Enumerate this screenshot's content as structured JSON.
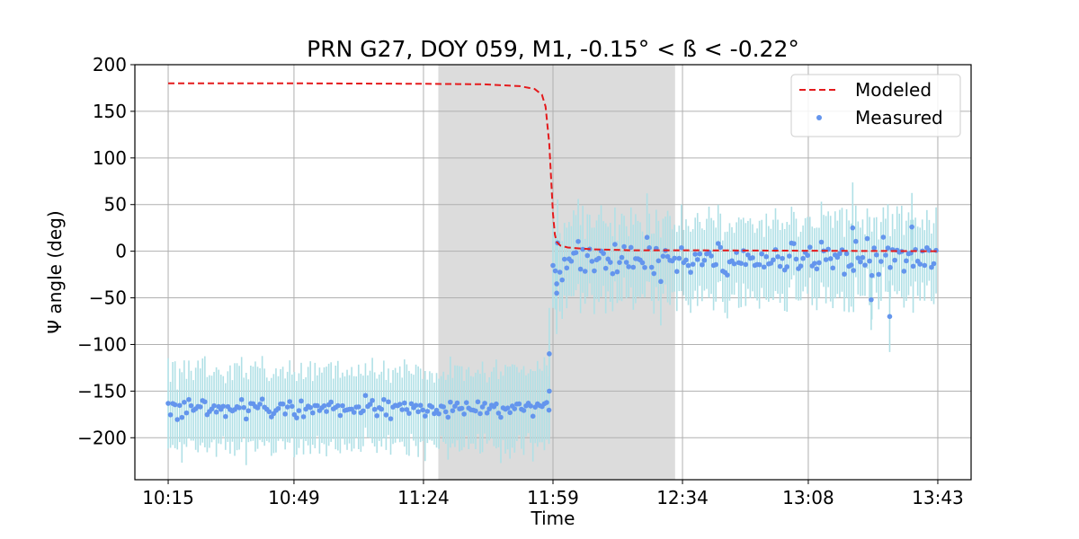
{
  "chart_data": {
    "type": "scatter",
    "title": "PRN G27, DOY 059, M1, -0.15° < ß < -0.22°",
    "xlabel": "Time",
    "ylabel": "Ψ angle (deg)",
    "x_unit": "time of day (HH:MM)",
    "xlim": [
      "10:06",
      "13:52"
    ],
    "ylim": [
      -245,
      200
    ],
    "x_ticks": [
      "10:15",
      "10:49",
      "11:24",
      "11:59",
      "12:34",
      "13:08",
      "13:43"
    ],
    "y_ticks": [
      200,
      150,
      100,
      50,
      0,
      -50,
      -100,
      -150,
      -200
    ],
    "y_tick_labels": [
      "200",
      "150",
      "100",
      "50",
      "0",
      "−50",
      "−100",
      "−150",
      "−200"
    ],
    "grid": true,
    "shaded_region": {
      "x_start": "11:28",
      "x_end": "12:32",
      "color": "#dcdcdc"
    },
    "legend": {
      "position": "top-right",
      "entries": [
        {
          "label": "Modeled",
          "style": "dashed-line",
          "color": "#e41a1c"
        },
        {
          "label": "Measured",
          "style": "marker",
          "color": "#6495ed"
        }
      ]
    },
    "series": [
      {
        "name": "Modeled",
        "style": "dashed-line",
        "color": "#e41a1c",
        "x": [
          "10:15",
          "10:49",
          "11:24",
          "11:40",
          "11:50",
          "11:54",
          "11:56",
          "11:57",
          "11:58",
          "11:59",
          "11:59:30",
          "12:00",
          "12:01",
          "12:03",
          "12:06",
          "12:10",
          "12:20",
          "12:34",
          "13:08",
          "13:43"
        ],
        "y": [
          180,
          180,
          179.5,
          179,
          177,
          174,
          168,
          155,
          115,
          40,
          18,
          10,
          6,
          4,
          3,
          2,
          1,
          1,
          0.5,
          0
        ]
      },
      {
        "name": "Measured",
        "style": "marker-with-errorbars",
        "color": "#6495ed",
        "error_color": "#b0e0e6",
        "error_half_width": 40,
        "segments": [
          {
            "x_start": "10:15",
            "x_end": "11:58",
            "mean": -168,
            "noise": 8
          },
          {
            "x_start": "11:59",
            "x_end": "13:43",
            "mean": -8,
            "noise": 14
          }
        ],
        "highlights": [
          {
            "x": "11:58",
            "y": -110
          },
          {
            "x": "11:58",
            "y": -150
          },
          {
            "x": "12:00",
            "y": -45
          },
          {
            "x": "12:00",
            "y": -35
          },
          {
            "x": "13:30",
            "y": -70
          },
          {
            "x": "13:25",
            "y": -52
          },
          {
            "x": "13:36",
            "y": 26
          },
          {
            "x": "13:20",
            "y": 25
          }
        ]
      }
    ]
  }
}
